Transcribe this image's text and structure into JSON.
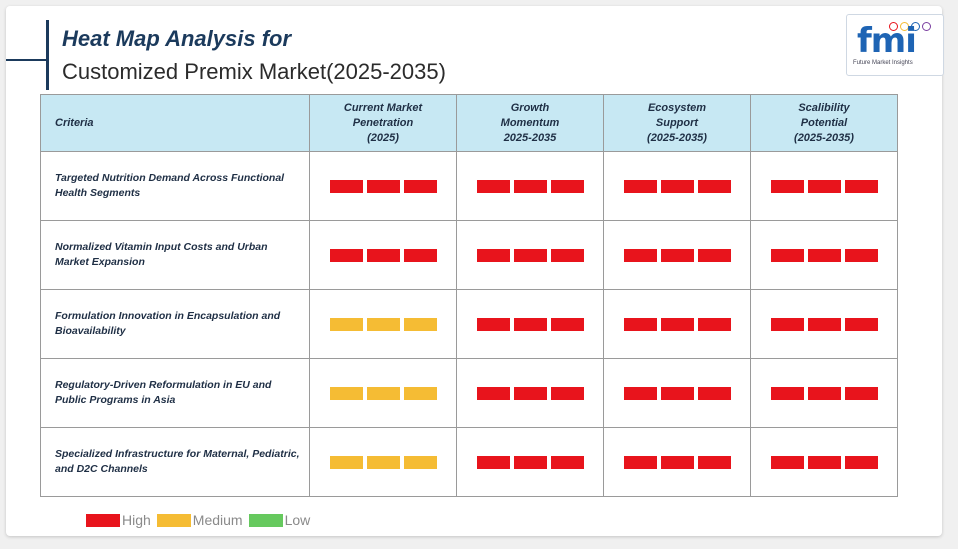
{
  "header": {
    "title_line1": "Heat Map Analysis for",
    "title_line2": "Customized Premix Market(2025-2035)"
  },
  "logo": {
    "text": "fmi",
    "subtitle": "Future Market Insights"
  },
  "colors": {
    "high": "#e8141c",
    "medium": "#f5bc34",
    "low": "#66c95e",
    "header_bg": "#c7e8f3"
  },
  "chart_data": {
    "type": "table",
    "title": "Heat Map Analysis for Customized Premix Market(2025-2035)",
    "columns": [
      "Criteria",
      "Current Market Penetration (2025)",
      "Growth Momentum 2025-2035",
      "Ecosystem Support (2025-2035)",
      "Scalibility Potential (2025-2035)"
    ],
    "column_lines": [
      [
        "Criteria"
      ],
      [
        "Current Market",
        "Penetration",
        "(2025)"
      ],
      [
        "Growth",
        "Momentum",
        "2025-2035"
      ],
      [
        "Ecosystem",
        "Support",
        "(2025-2035)"
      ],
      [
        "Scalibility",
        "Potential",
        "(2025-2035)"
      ]
    ],
    "rows": [
      {
        "criteria": "Targeted Nutrition Demand Across Functional Health Segments",
        "values": [
          "High",
          "High",
          "High",
          "High"
        ]
      },
      {
        "criteria": "Normalized Vitamin Input Costs and Urban Market Expansion",
        "values": [
          "High",
          "High",
          "High",
          "High"
        ]
      },
      {
        "criteria": "Formulation Innovation in Encapsulation and Bioavailability",
        "values": [
          "Medium",
          "High",
          "High",
          "High"
        ]
      },
      {
        "criteria": "Regulatory-Driven Reformulation in EU and Public Programs in Asia",
        "values": [
          "Medium",
          "High",
          "High",
          "High"
        ]
      },
      {
        "criteria": "Specialized Infrastructure for Maternal, Pediatric, and D2C Channels",
        "values": [
          "Medium",
          "High",
          "High",
          "High"
        ]
      }
    ],
    "legend": [
      {
        "label": "High",
        "color": "#e8141c"
      },
      {
        "label": "Medium",
        "color": "#f5bc34"
      },
      {
        "label": "Low",
        "color": "#66c95e"
      }
    ]
  }
}
